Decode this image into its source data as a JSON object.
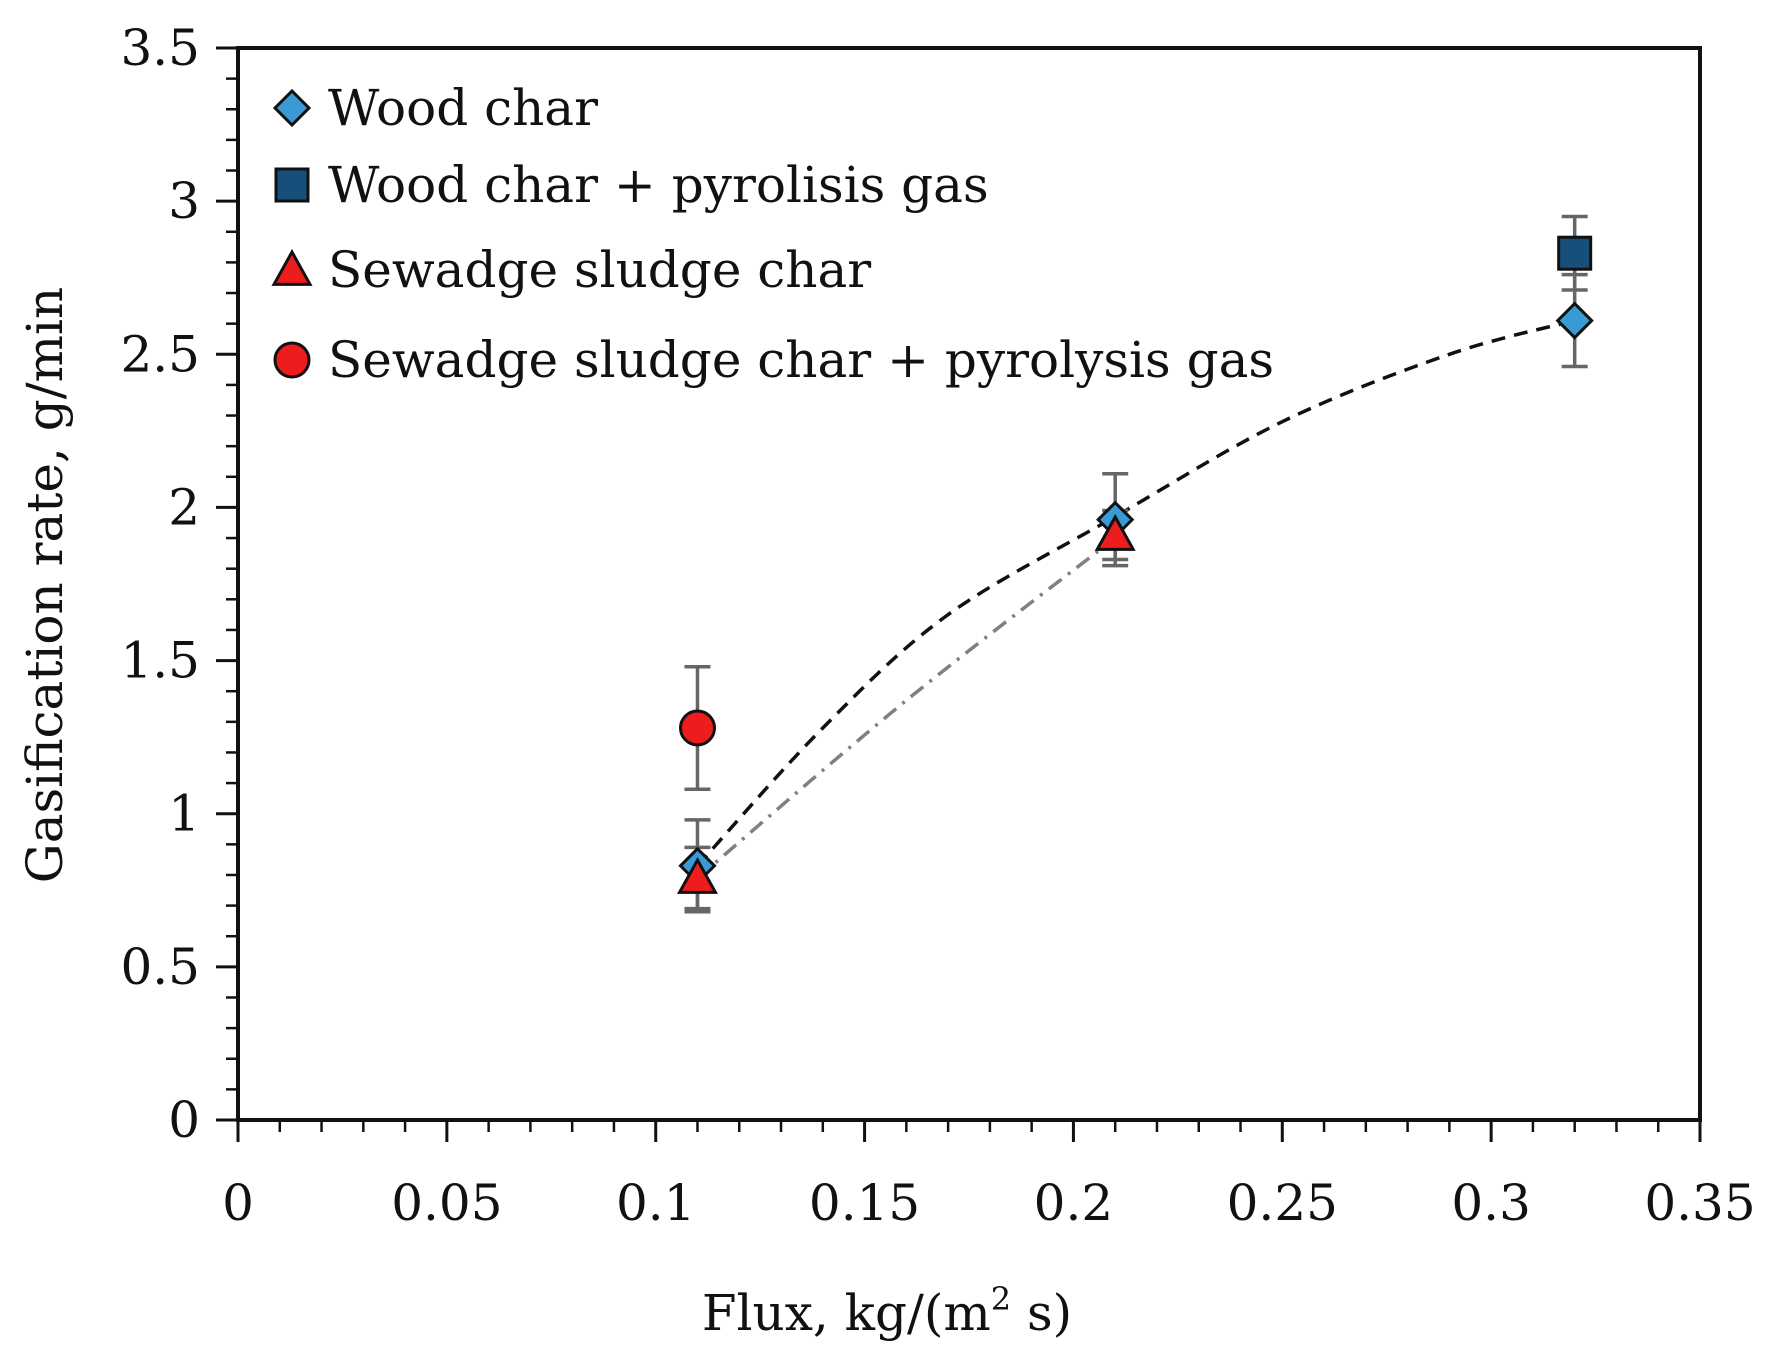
{
  "chart_data": {
    "type": "scatter",
    "title": "",
    "xlabel": "Flux, kg/(m",
    "xlabel_sup": "2",
    "xlabel_end": " s)",
    "ylabel": "Gasification rate, g/min",
    "xlim": [
      0,
      0.35
    ],
    "ylim": [
      0,
      3.5
    ],
    "x_ticks": [
      0,
      0.05,
      0.1,
      0.15,
      0.2,
      0.25,
      0.3,
      0.35
    ],
    "x_tick_labels": [
      "0",
      "0.05",
      "0.1",
      "0.15",
      "0.2",
      "0.25",
      "0.3",
      "0.35"
    ],
    "y_ticks": [
      0,
      0.5,
      1,
      1.5,
      2,
      2.5,
      3,
      3.5
    ],
    "y_tick_labels": [
      "0",
      "0.5",
      "1",
      "1.5",
      "2",
      "2.5",
      "3",
      "3.5"
    ],
    "x_minor_step": 0.01,
    "y_minor_step": 0.1,
    "grid": false,
    "legend_position": "top-left",
    "series": [
      {
        "name": "Wood char",
        "marker": "diamond",
        "color": "#3a9ad6",
        "points": [
          {
            "x": 0.11,
            "y": 0.83,
            "err_low": 0.68,
            "err_high": 0.98
          },
          {
            "x": 0.21,
            "y": 1.96,
            "err_low": 1.81,
            "err_high": 2.11
          },
          {
            "x": 0.32,
            "y": 2.61,
            "err_low": 2.46,
            "err_high": 2.76
          }
        ]
      },
      {
        "name": "Wood char + pyrolisis gas",
        "marker": "square",
        "color": "#16507a",
        "points": [
          {
            "x": 0.32,
            "y": 2.83,
            "err_low": 2.71,
            "err_high": 2.95
          }
        ]
      },
      {
        "name": "Sewadge sludge char",
        "marker": "triangle",
        "color": "#ee1c1c",
        "points": [
          {
            "x": 0.11,
            "y": 0.79,
            "err_low": 0.69,
            "err_high": 0.89
          },
          {
            "x": 0.21,
            "y": 1.91,
            "err_low": 1.83,
            "err_high": 1.99
          }
        ]
      },
      {
        "name": "Sewadge sludge char + pyrolysis gas",
        "marker": "circle",
        "color": "#ee1c1c",
        "points": [
          {
            "x": 0.11,
            "y": 1.28,
            "err_low": 1.08,
            "err_high": 1.48
          }
        ]
      }
    ],
    "trendlines": [
      {
        "name": "wood-char-trend",
        "style": "dashed",
        "color": "#111111",
        "points": [
          [
            0.11,
            0.83
          ],
          [
            0.14,
            1.28
          ],
          [
            0.17,
            1.65
          ],
          [
            0.21,
            1.97
          ],
          [
            0.25,
            2.28
          ],
          [
            0.29,
            2.5
          ],
          [
            0.32,
            2.61
          ]
        ]
      },
      {
        "name": "sludge-char-trend",
        "style": "dash-dot",
        "color": "#808080",
        "points": [
          [
            0.11,
            0.79
          ],
          [
            0.16,
            1.37
          ],
          [
            0.21,
            1.9
          ]
        ]
      }
    ]
  }
}
